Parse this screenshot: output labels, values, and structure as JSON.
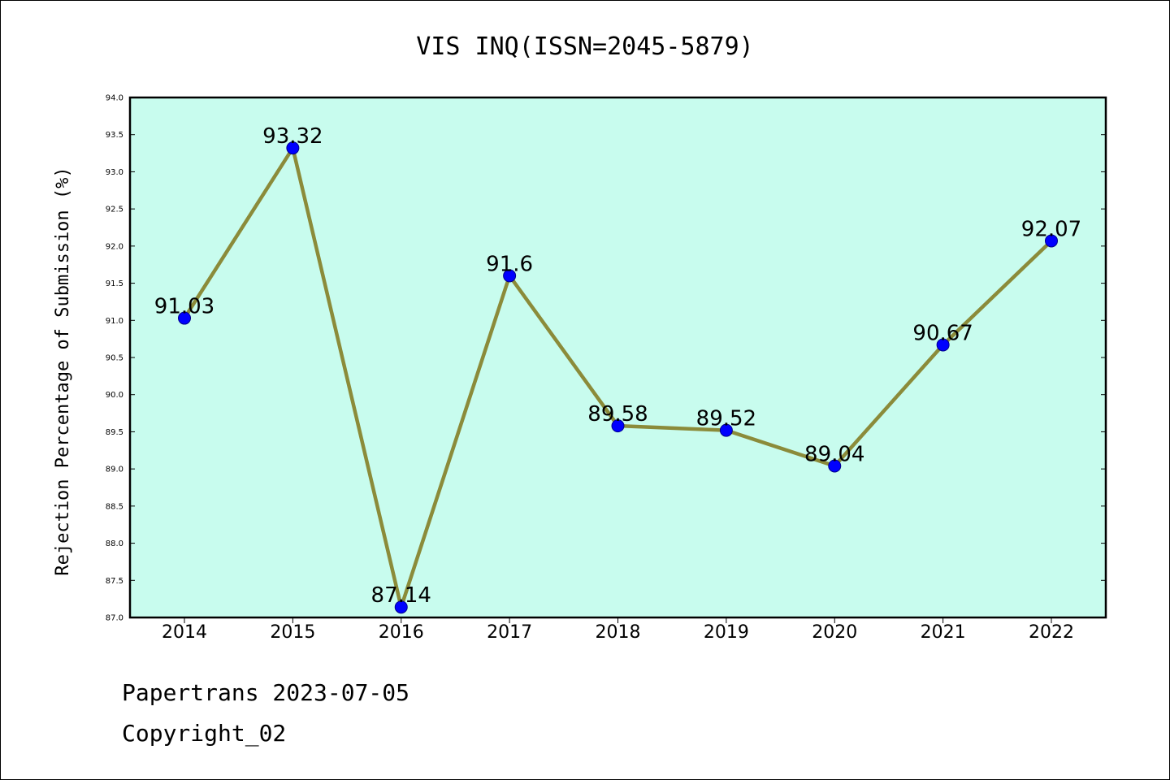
{
  "chart_data": {
    "type": "line",
    "title": "VIS INQ(ISSN=2045-5879)",
    "xlabel": "",
    "ylabel": "Rejection Percentage of Submission (%)",
    "categories": [
      "2014",
      "2015",
      "2016",
      "2017",
      "2018",
      "2019",
      "2020",
      "2021",
      "2022"
    ],
    "series": [
      {
        "values": [
          91.03,
          93.32,
          87.14,
          91.6,
          89.58,
          89.52,
          89.04,
          90.67,
          92.07
        ],
        "labels": [
          "91.03",
          "93.32",
          "87.14",
          "91.6",
          "89.58",
          "89.52",
          "89.04",
          "90.67",
          "92.07"
        ]
      }
    ],
    "ylim": [
      87.0,
      94.0
    ],
    "yticks": [
      "87.0",
      "87.5",
      "88.0",
      "88.5",
      "89.0",
      "89.5",
      "90.0",
      "90.5",
      "91.0",
      "91.5",
      "92.0",
      "92.5",
      "93.0",
      "93.5",
      "94.0"
    ],
    "grid": false,
    "colors": {
      "plot_background": "#c8fcee",
      "line": "#8b8b3a",
      "marker": "#0000ff"
    }
  },
  "footer": {
    "line1": "Papertrans 2023-07-05",
    "line2": "Copyright_02"
  }
}
